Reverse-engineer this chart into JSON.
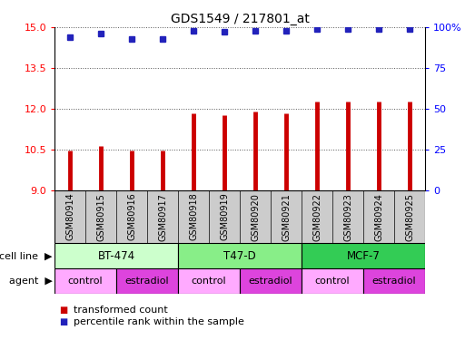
{
  "title": "GDS1549 / 217801_at",
  "samples": [
    "GSM80914",
    "GSM80915",
    "GSM80916",
    "GSM80917",
    "GSM80918",
    "GSM80919",
    "GSM80920",
    "GSM80921",
    "GSM80922",
    "GSM80923",
    "GSM80924",
    "GSM80925"
  ],
  "transformed_counts": [
    10.48,
    10.62,
    10.47,
    10.47,
    11.82,
    11.77,
    11.9,
    11.85,
    12.28,
    12.28,
    12.28,
    12.28
  ],
  "percentile_ranks": [
    94,
    96,
    93,
    93,
    98,
    97,
    98,
    98,
    99,
    99,
    99,
    99
  ],
  "ylim_left": [
    9,
    15
  ],
  "ylim_right": [
    0,
    100
  ],
  "yticks_left": [
    9,
    10.5,
    12,
    13.5,
    15
  ],
  "yticks_right": [
    0,
    25,
    50,
    75,
    100
  ],
  "ytick_right_labels": [
    "0",
    "25",
    "50",
    "75",
    "100%"
  ],
  "bar_color": "#cc0000",
  "dot_color": "#2222bb",
  "cell_lines": [
    {
      "label": "BT-474",
      "start": 0,
      "end": 4,
      "color": "#ccffcc"
    },
    {
      "label": "T47-D",
      "start": 4,
      "end": 8,
      "color": "#88ee88"
    },
    {
      "label": "MCF-7",
      "start": 8,
      "end": 12,
      "color": "#33cc55"
    }
  ],
  "agents": [
    {
      "label": "control",
      "start": 0,
      "end": 2,
      "color": "#ffaaff"
    },
    {
      "label": "estradiol",
      "start": 2,
      "end": 4,
      "color": "#dd44dd"
    },
    {
      "label": "control",
      "start": 4,
      "end": 6,
      "color": "#ffaaff"
    },
    {
      "label": "estradiol",
      "start": 6,
      "end": 8,
      "color": "#dd44dd"
    },
    {
      "label": "control",
      "start": 8,
      "end": 10,
      "color": "#ffaaff"
    },
    {
      "label": "estradiol",
      "start": 10,
      "end": 12,
      "color": "#dd44dd"
    }
  ],
  "legend_items": [
    {
      "label": "transformed count",
      "color": "#cc0000"
    },
    {
      "label": "percentile rank within the sample",
      "color": "#2222bb"
    }
  ],
  "row_label_cell": "cell line",
  "row_label_agent": "agent",
  "xtick_bg": "#cccccc",
  "plot_bg": "#ffffff"
}
